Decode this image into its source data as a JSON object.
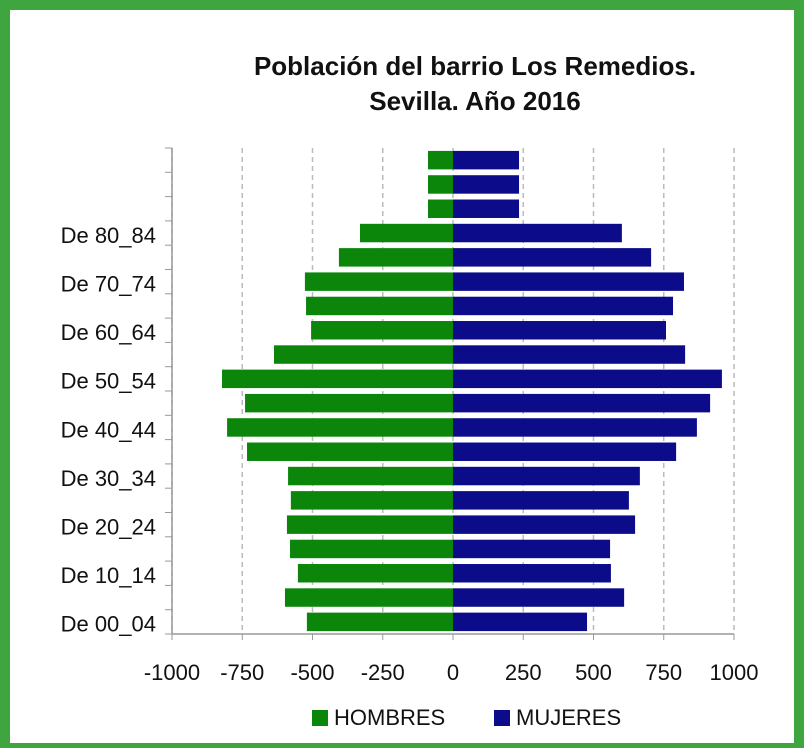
{
  "chart_data": {
    "type": "bar",
    "orientation": "horizontal",
    "title": [
      "Población del barrio Los Remedios.",
      "Sevilla. Año 2016"
    ],
    "categories": [
      "De 00_04",
      null,
      "De 10_14",
      null,
      "De 20_24",
      null,
      "De 30_34",
      null,
      "De 40_44",
      null,
      "De 50_54",
      null,
      "De 60_64",
      null,
      "De 70_74",
      null,
      "De 80_84",
      null,
      null,
      null
    ],
    "series": [
      {
        "name": "HOMBRES",
        "color": "#0b860b",
        "values": [
          -520,
          -598,
          -552,
          -580,
          -591,
          -577,
          -587,
          -733,
          -804,
          -740,
          -822,
          -637,
          -505,
          -523,
          -527,
          -406,
          -331,
          -89,
          -89,
          -89
        ]
      },
      {
        "name": "MUJERES",
        "color": "#0c0c8a",
        "values": [
          477,
          609,
          562,
          559,
          648,
          626,
          665,
          794,
          868,
          915,
          957,
          826,
          758,
          783,
          822,
          705,
          601,
          235,
          235,
          235
        ]
      }
    ],
    "xlim": [
      -1000,
      1000
    ],
    "xticks": [
      -1000,
      -750,
      -500,
      -250,
      0,
      250,
      500,
      750,
      1000
    ],
    "grid": true,
    "legend": "bottom"
  }
}
